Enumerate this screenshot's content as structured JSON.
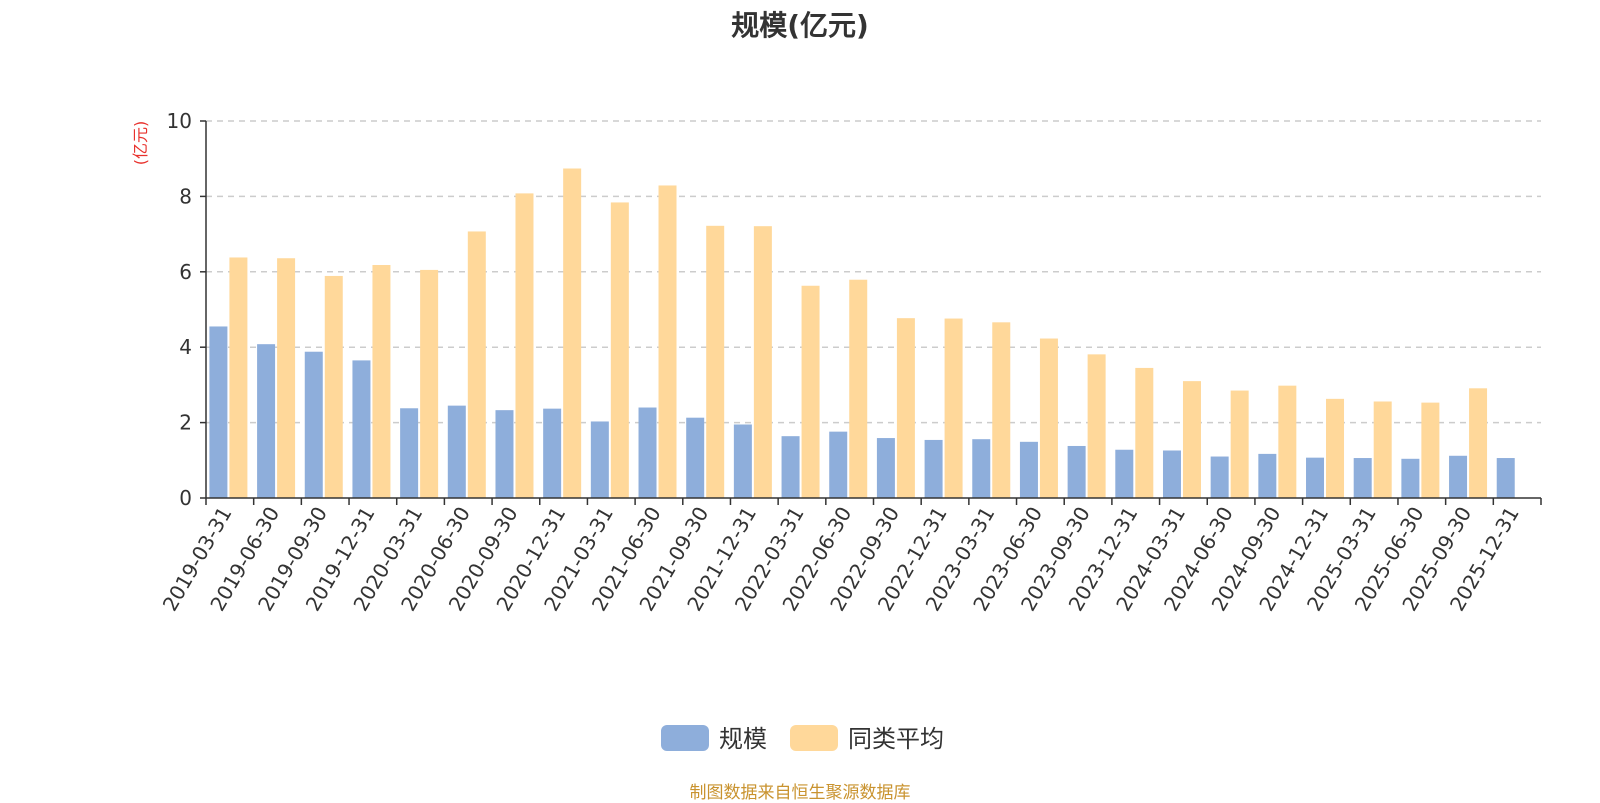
{
  "chart_data": {
    "type": "bar",
    "title": "规模(亿元)",
    "ylabel": "(亿元)",
    "xlabel": "",
    "ylim": [
      0,
      10
    ],
    "yticks": [
      0,
      2,
      4,
      6,
      8,
      10
    ],
    "grid": true,
    "legend_position": "bottom-center",
    "categories": [
      "2019-03-31",
      "2019-06-30",
      "2019-09-30",
      "2019-12-31",
      "2020-03-31",
      "2020-06-30",
      "2020-09-30",
      "2020-12-31",
      "2021-03-31",
      "2021-06-30",
      "2021-09-30",
      "2021-12-31",
      "2022-03-31",
      "2022-06-30",
      "2022-09-30",
      "2022-12-31",
      "2023-03-31",
      "2023-06-30",
      "2023-09-30",
      "2023-12-31",
      "2024-03-31",
      "2024-06-30",
      "2024-09-30",
      "2024-12-31",
      "2025-03-31",
      "2025-06-30",
      "2025-09-30",
      "2025-12-31"
    ],
    "series": [
      {
        "name": "规模",
        "color": "#8eaedb",
        "values": [
          4.55,
          4.08,
          3.88,
          3.65,
          2.38,
          2.45,
          2.33,
          2.37,
          2.03,
          2.4,
          2.13,
          1.95,
          1.64,
          1.76,
          1.59,
          1.54,
          1.56,
          1.49,
          1.38,
          1.28,
          1.26,
          1.1,
          1.17,
          1.07,
          1.06,
          1.04,
          1.12,
          1.06
        ]
      },
      {
        "name": "同类平均",
        "color": "#ffd89a",
        "values": [
          6.38,
          6.36,
          5.89,
          6.18,
          6.05,
          7.07,
          8.08,
          8.74,
          7.84,
          8.29,
          7.22,
          7.21,
          5.63,
          5.79,
          4.77,
          4.76,
          4.66,
          4.23,
          3.81,
          3.45,
          3.1,
          2.85,
          2.98,
          2.63,
          2.56,
          2.53,
          2.91,
          null
        ]
      }
    ]
  },
  "source_note": "制图数据来自恒生聚源数据库"
}
